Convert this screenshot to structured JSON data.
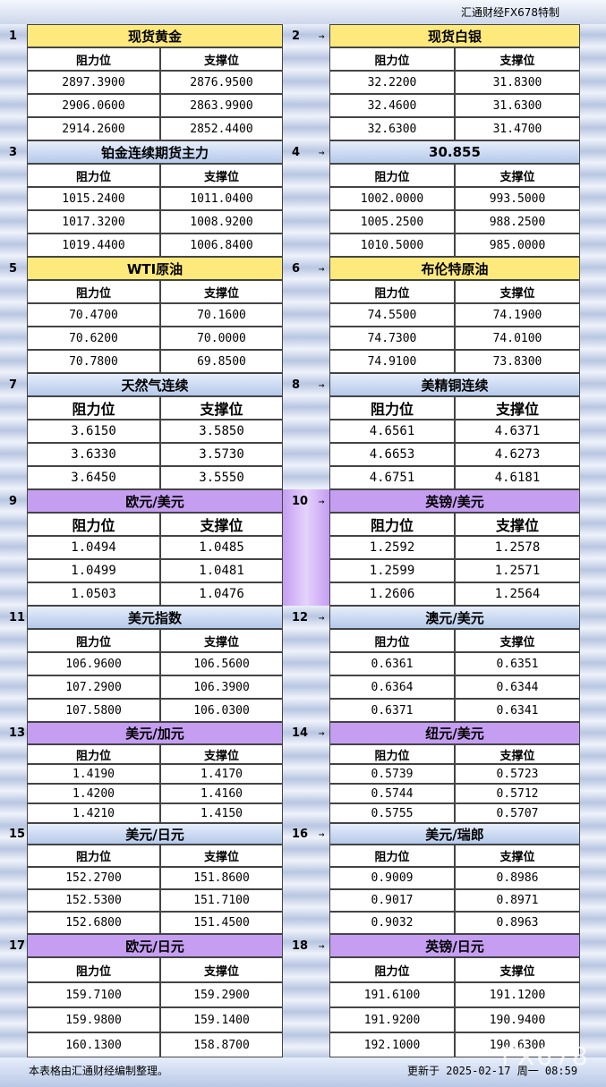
{
  "header": {
    "brand": "汇通财经FX678特制"
  },
  "panels": [
    {
      "number": "1",
      "title": "现货黄金",
      "columns": [
        "阻力位",
        "支撑位"
      ],
      "rows": [
        [
          "2897.3900",
          "2876.9500"
        ],
        [
          "2906.0600",
          "2863.9900"
        ],
        [
          "2914.2600",
          "2852.4400"
        ]
      ]
    },
    {
      "number": "2",
      "title": "现货白银",
      "columns": [
        "阻力位",
        "支撑位"
      ],
      "rows": [
        [
          "32.2200",
          "31.8300"
        ],
        [
          "32.4600",
          "31.6300"
        ],
        [
          "32.6300",
          "31.4700"
        ]
      ]
    },
    {
      "number": "3",
      "title": "铂金连续期货主力",
      "columns": [
        "阻力位",
        "支撑位"
      ],
      "rows": [
        [
          "1015.2400",
          "1011.0400"
        ],
        [
          "1017.3200",
          "1008.9200"
        ],
        [
          "1019.4400",
          "1006.8400"
        ]
      ]
    },
    {
      "number": "4",
      "title": "30.855",
      "columns": [
        "阻力位",
        "支撑位"
      ],
      "rows": [
        [
          "1002.0000",
          "993.5000"
        ],
        [
          "1005.2500",
          "988.2500"
        ],
        [
          "1010.5000",
          "985.0000"
        ]
      ]
    },
    {
      "number": "5",
      "title": "WTI原油",
      "columns": [
        "阻力位",
        "支撑位"
      ],
      "rows": [
        [
          "70.4700",
          "70.1600"
        ],
        [
          "70.6200",
          "70.0000"
        ],
        [
          "70.7800",
          "69.8500"
        ]
      ]
    },
    {
      "number": "6",
      "title": "布伦特原油",
      "columns": [
        "阻力位",
        "支撑位"
      ],
      "rows": [
        [
          "74.5500",
          "74.1900"
        ],
        [
          "74.7300",
          "74.0100"
        ],
        [
          "74.9100",
          "73.8300"
        ]
      ]
    },
    {
      "number": "7",
      "title": "天然气连续",
      "columns": [
        "阻力位",
        "支撑位"
      ],
      "rows": [
        [
          "3.6150",
          "3.5850"
        ],
        [
          "3.6330",
          "3.5730"
        ],
        [
          "3.6450",
          "3.5550"
        ]
      ]
    },
    {
      "number": "8",
      "title": "美精铜连续",
      "columns": [
        "阻力位",
        "支撑位"
      ],
      "rows": [
        [
          "4.6561",
          "4.6371"
        ],
        [
          "4.6653",
          "4.6273"
        ],
        [
          "4.6751",
          "4.6181"
        ]
      ]
    },
    {
      "number": "9",
      "title": "欧元/美元",
      "columns": [
        "阻力位",
        "支撑位"
      ],
      "rows": [
        [
          "1.0494",
          "1.0485"
        ],
        [
          "1.0499",
          "1.0481"
        ],
        [
          "1.0503",
          "1.0476"
        ]
      ]
    },
    {
      "number": "10",
      "title": "英镑/美元",
      "columns": [
        "阻力位",
        "支撑位"
      ],
      "rows": [
        [
          "1.2592",
          "1.2578"
        ],
        [
          "1.2599",
          "1.2571"
        ],
        [
          "1.2606",
          "1.2564"
        ]
      ]
    },
    {
      "number": "11",
      "title": "美元指数",
      "columns": [
        "阻力位",
        "支撑位"
      ],
      "rows": [
        [
          "106.9600",
          "106.5600"
        ],
        [
          "107.2900",
          "106.3900"
        ],
        [
          "107.5800",
          "106.0300"
        ]
      ]
    },
    {
      "number": "12",
      "title": "澳元/美元",
      "columns": [
        "阻力位",
        "支撑位"
      ],
      "rows": [
        [
          "0.6361",
          "0.6351"
        ],
        [
          "0.6364",
          "0.6344"
        ],
        [
          "0.6371",
          "0.6341"
        ]
      ]
    },
    {
      "number": "13",
      "title": "美元/加元",
      "columns": [
        "阻力位",
        "支撑位"
      ],
      "rows": [
        [
          "1.4190",
          "1.4170"
        ],
        [
          "1.4200",
          "1.4160"
        ],
        [
          "1.4210",
          "1.4150"
        ]
      ]
    },
    {
      "number": "14",
      "title": "纽元/美元",
      "columns": [
        "阻力位",
        "支撑位"
      ],
      "rows": [
        [
          "0.5739",
          "0.5723"
        ],
        [
          "0.5744",
          "0.5712"
        ],
        [
          "0.5755",
          "0.5707"
        ]
      ]
    },
    {
      "number": "15",
      "title": "美元/日元",
      "columns": [
        "阻力位",
        "支撑位"
      ],
      "rows": [
        [
          "152.2700",
          "151.8600"
        ],
        [
          "152.5300",
          "151.7100"
        ],
        [
          "152.6800",
          "151.4500"
        ]
      ]
    },
    {
      "number": "16",
      "title": "美元/瑞郎",
      "columns": [
        "阻力位",
        "支撑位"
      ],
      "rows": [
        [
          "0.9009",
          "0.8986"
        ],
        [
          "0.9017",
          "0.8971"
        ],
        [
          "0.9032",
          "0.8963"
        ]
      ]
    },
    {
      "number": "17",
      "title": "欧元/日元",
      "columns": [
        "阻力位",
        "支撑位"
      ],
      "rows": [
        [
          "159.7100",
          "159.2900"
        ],
        [
          "159.9800",
          "159.1400"
        ],
        [
          "160.1300",
          "158.8700"
        ]
      ]
    },
    {
      "number": "18",
      "title": "英镑/日元",
      "columns": [
        "阻力位",
        "支撑位"
      ],
      "rows": [
        [
          "191.6100",
          "191.1200"
        ],
        [
          "191.9200",
          "190.9400"
        ],
        [
          "192.1000",
          "190.6300"
        ]
      ]
    }
  ],
  "footer": {
    "note": "本表格由汇通财经编制整理。",
    "updated": "更新于 2025-02-17 周一 08:59",
    "watermark": "FX678"
  }
}
